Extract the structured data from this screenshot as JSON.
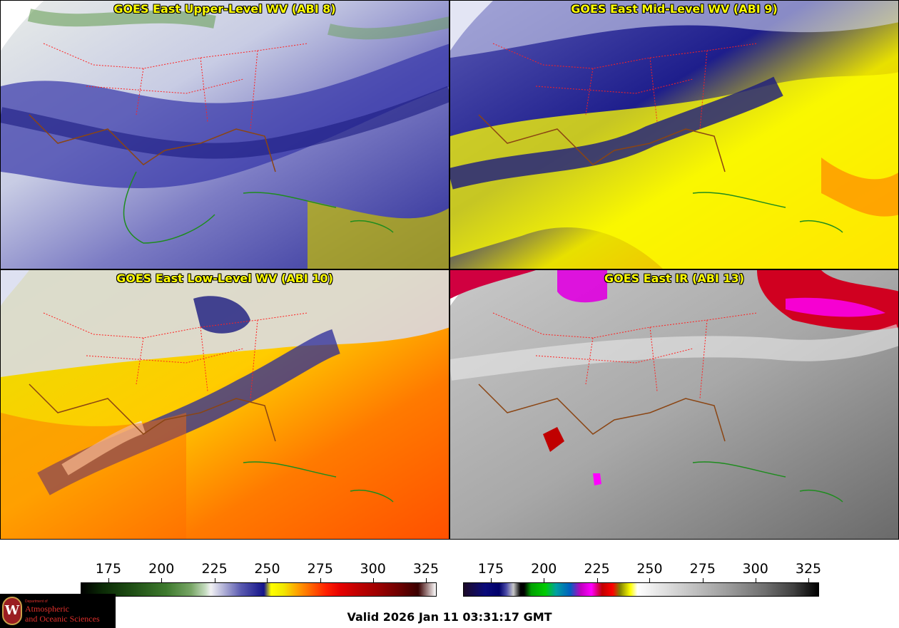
{
  "panels": [
    {
      "id": "upper",
      "title": "GOES East Upper-Level WV (ABI 8)"
    },
    {
      "id": "mid",
      "title": "GOES East Mid-Level WV (ABI 9)"
    },
    {
      "id": "low",
      "title": "GOES East Low-Level WV (ABI 10)"
    },
    {
      "id": "ir",
      "title": "GOES East IR (ABI 13)"
    }
  ],
  "colorbars": {
    "wv": {
      "ticks": [
        "175",
        "200",
        "225",
        "250",
        "275",
        "300",
        "325"
      ],
      "tick_positions": [
        0.078,
        0.227,
        0.376,
        0.524,
        0.673,
        0.821,
        0.97
      ]
    },
    "ir": {
      "ticks": [
        "175",
        "200",
        "225",
        "250",
        "275",
        "300",
        "325"
      ],
      "tick_positions": [
        0.078,
        0.227,
        0.376,
        0.524,
        0.673,
        0.821,
        0.97
      ]
    }
  },
  "logo": {
    "dept": "Department of",
    "line1": "Atmospheric",
    "line2": "and Oceanic Sciences"
  },
  "valid_time": "Valid 2026 Jan 11 03:31:17 GMT",
  "colors": {
    "state_borders": "#ff2020",
    "coastlines_land": "#8b4513",
    "coastlines_sea": "#1e8c1e",
    "title_text": "#ffff00"
  }
}
